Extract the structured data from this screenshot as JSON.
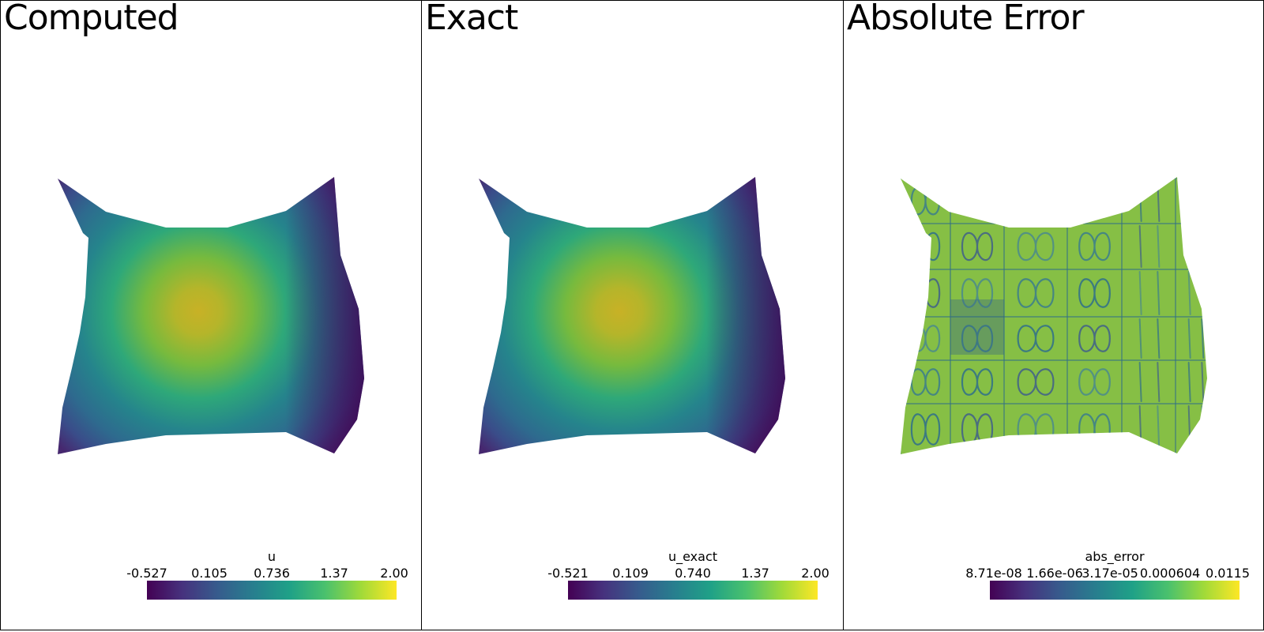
{
  "panels": [
    {
      "title": "Computed",
      "field": "u",
      "colorbar": {
        "title": "u",
        "ticks": [
          "-0.527",
          "0.105",
          "0.736",
          "1.37",
          "2.00"
        ]
      }
    },
    {
      "title": "Exact",
      "field": "u_exact",
      "colorbar": {
        "title": "u_exact",
        "ticks": [
          "-0.521",
          "0.109",
          "0.740",
          "1.37",
          "2.00"
        ]
      }
    },
    {
      "title": "Absolute Error",
      "field": "abs_error",
      "colorbar": {
        "title": "abs_error",
        "ticks": [
          "8.71e-08",
          "1.66e-06",
          "3.17e-05",
          "0.000604",
          "0.0115"
        ]
      }
    }
  ],
  "colormap": {
    "name": "viridis",
    "colors": [
      "#440154",
      "#46327e",
      "#365c8d",
      "#277f8e",
      "#1fa187",
      "#4ac16d",
      "#a0da39",
      "#fde725"
    ]
  }
}
